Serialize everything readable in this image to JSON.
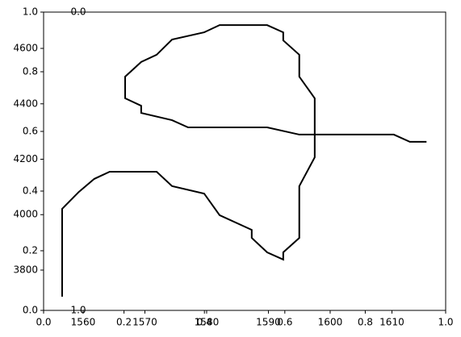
{
  "chart_data": [
    {
      "type": "axes",
      "xlim": [
        0,
        1
      ],
      "ylim": [
        0,
        1
      ],
      "xticks": [
        {
          "value": 0,
          "label": "0.0"
        },
        0.2,
        0.4,
        0.6,
        0.8,
        {
          "value": 1,
          "label": "1.0"
        }
      ],
      "yticks": [
        {
          "value": 0,
          "label": "0.0"
        },
        0.2,
        0.4,
        0.6,
        0.8,
        {
          "value": 1,
          "label": "1.0"
        }
      ]
    },
    {
      "type": "line",
      "color": "#000000",
      "xlim": [
        1553.6,
        1618.7
      ],
      "ylim": [
        3654.5,
        4731
      ],
      "xticks": [
        1560,
        1570,
        1580,
        1590,
        1600,
        1610
      ],
      "yticks": [
        3800,
        4000,
        4200,
        4400,
        4600
      ],
      "x": [
        1556.6,
        1556.6,
        1559.3,
        1561.8,
        1564.3,
        1571.9,
        1574.4,
        1579.6,
        1582.1,
        1587.3,
        1587.3,
        1589.8,
        1592.4,
        1592.4,
        1595.0,
        1595.0,
        1597.5,
        1597.5,
        1595.0,
        1595.0,
        1592.4,
        1592.4,
        1589.8,
        1582.1,
        1579.6,
        1574.4,
        1571.9,
        1569.4,
        1566.8,
        1566.8,
        1569.4,
        1569.4,
        1574.4,
        1577.0,
        1589.8,
        1595.0,
        1610.3,
        1612.9,
        1615.6
      ],
      "y": [
        3704,
        4021,
        4082,
        4129,
        4155,
        4155,
        4103,
        4076,
        3998,
        3945,
        3916,
        3864,
        3838,
        3864,
        3916,
        4103,
        4207,
        4420,
        4498,
        4577,
        4629,
        4658,
        4684,
        4684,
        4658,
        4632,
        4577,
        4551,
        4498,
        4420,
        4393,
        4367,
        4341,
        4315,
        4315,
        4289,
        4289,
        4263,
        4263
      ]
    },
    {
      "type": "axes",
      "ylim": [
        1,
        0
      ],
      "yticks": [
        {
          "value": 0,
          "label": "0.0"
        },
        {
          "value": 1,
          "label": "1.0"
        }
      ]
    }
  ]
}
